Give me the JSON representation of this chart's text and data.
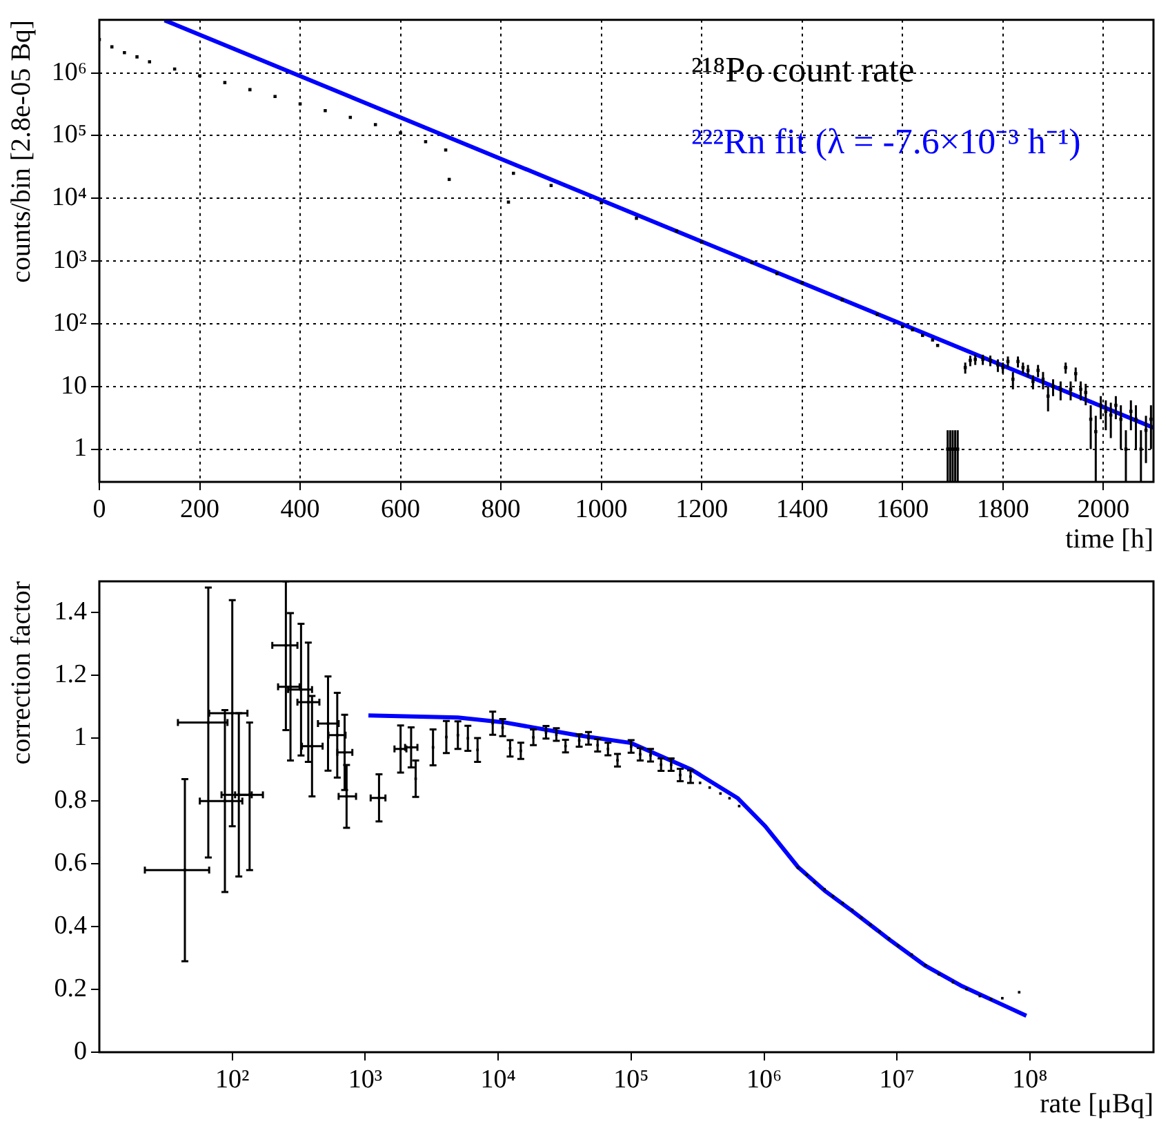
{
  "chart_data": [
    {
      "type": "scatter",
      "xlabel": "time [h]",
      "ylabel": "counts/bin [2.8e-05 Bq]",
      "log": "y",
      "grid": true,
      "legend": "top right",
      "xlim": [
        0,
        2100
      ],
      "xticks": [
        0,
        200,
        400,
        600,
        800,
        1000,
        1200,
        1400,
        1600,
        1800,
        2000
      ],
      "ylim": [
        0.3,
        7000000
      ],
      "yticks": [
        1,
        10,
        {
          "value": 100,
          "label": "10²"
        },
        {
          "value": 1000,
          "label": "10³"
        },
        {
          "value": 10000,
          "label": "10⁴"
        },
        {
          "value": 100000,
          "label": "10⁵"
        },
        {
          "value": 1000000,
          "label": "10⁶"
        }
      ],
      "series": [
        {
          "name": "²¹⁸Po count rate",
          "color": "#000000",
          "marker": "square",
          "x": [
            0,
            25,
            50,
            75,
            100,
            150,
            200,
            250,
            300,
            350,
            400,
            450,
            500,
            550,
            600,
            650,
            690,
            697,
            815,
            825,
            900,
            1000,
            1070,
            1150,
            1200,
            1300,
            1350,
            1400,
            1480,
            1550,
            1600,
            1620,
            1640,
            1660,
            1670,
            1690,
            1695,
            1700,
            1705,
            1710,
            1725,
            1735,
            1745,
            1760,
            1775,
            1790,
            1800,
            1810,
            1820,
            1830,
            1840,
            1850,
            1860,
            1870,
            1880,
            1890,
            1900,
            1915,
            1925,
            1935,
            1945,
            1955,
            1965,
            1975,
            1985,
            1995,
            2005,
            2015,
            2025,
            2035,
            2045,
            2055,
            2065,
            2075,
            2085,
            2095
          ],
          "values": [
            3400000,
            2600000,
            2100000,
            1800000,
            1500000,
            1150000,
            900000,
            700000,
            540000,
            420000,
            320000,
            250000,
            195000,
            150000,
            110000,
            80000,
            59000,
            20000,
            8700,
            25000,
            16000,
            8500,
            4800,
            3000,
            2000,
            950,
            630,
            450,
            240,
            140,
            90,
            80,
            65,
            55,
            45,
            1,
            1,
            1,
            1,
            1,
            20,
            26,
            27,
            27,
            26,
            22,
            20,
            25,
            13,
            25,
            20,
            18,
            12,
            18,
            13,
            7,
            10,
            9,
            20,
            9,
            16,
            9,
            8,
            3,
            1.9,
            5,
            4,
            3.5,
            5,
            3,
            1,
            4,
            3,
            1,
            2,
            3
          ],
          "errors": [
            null,
            null,
            null,
            null,
            null,
            null,
            null,
            null,
            null,
            null,
            null,
            null,
            null,
            null,
            null,
            null,
            null,
            null,
            null,
            null,
            null,
            null,
            null,
            null,
            null,
            null,
            null,
            null,
            null,
            null,
            null,
            null,
            null,
            null,
            null,
            [
              0.3,
              2
            ],
            [
              0.3,
              2
            ],
            [
              0.3,
              2
            ],
            [
              0.3,
              2
            ],
            [
              0.3,
              2
            ],
            4,
            5,
            5,
            5,
            5,
            5,
            4,
            5,
            4,
            5,
            4,
            4,
            3,
            4,
            4,
            3,
            3,
            3,
            4,
            3,
            4,
            3,
            3,
            2,
            [
              0.3,
              3.4
            ],
            2,
            2,
            2,
            2,
            2,
            [
              0.3,
              2
            ],
            2,
            2,
            [
              0.3,
              2
            ],
            [
              0.6,
              3.4
            ],
            2
          ]
        },
        {
          "name": "²²²Rn fit (λ = -7.6×10⁻³ h⁻¹)",
          "type": "line",
          "color": "#0000ff",
          "marker": "none",
          "x": [
            130,
            2100
          ],
          "values": [
            6900000,
            2.2
          ]
        }
      ]
    },
    {
      "type": "scatter",
      "xlabel": "rate [μBq]",
      "ylabel": "correction factor",
      "log": "x",
      "grid": false,
      "legend": false,
      "xlim": [
        10,
        850000000
      ],
      "xticks": [
        {
          "value": 100,
          "label": "10²"
        },
        {
          "value": 1000,
          "label": "10³"
        },
        {
          "value": 10000,
          "label": "10⁴"
        },
        {
          "value": 100000,
          "label": "10⁵"
        },
        {
          "value": 1000000,
          "label": "10⁶"
        },
        {
          "value": 10000000,
          "label": "10⁷"
        },
        {
          "value": 100000000,
          "label": "10⁸"
        }
      ],
      "ylim": [
        0,
        1.5
      ],
      "yticks": [
        0,
        0.2,
        0.4,
        0.6,
        0.8,
        1,
        1.2,
        1.4
      ],
      "series": [
        {
          "color": "#000000",
          "marker": "square",
          "x": [
            44,
            66,
            88,
            100,
            112,
            135,
            253,
            274,
            329,
            373,
            398,
            525,
            616,
            700,
            724,
            1270,
            1845,
            2214,
            2396,
            3236,
            4074,
            4977,
            5920,
            6998,
            9100,
            10800,
            12300,
            14800,
            18400,
            22900,
            27400,
            32100,
            40700,
            47800,
            56000,
            67000,
            79000,
            100000,
            117000,
            140000,
            168000,
            200000,
            234000,
            280000,
            330000,
            390000,
            470000,
            550000,
            650000,
            1800000,
            2100000,
            2400000,
            2850000,
            3300000,
            3900000,
            4600000,
            5400000,
            6300000,
            7400000,
            8700000,
            10200000,
            12900000,
            16400000,
            20700000,
            26400000,
            33400000,
            42000000,
            51000000,
            62000000,
            83000000
          ],
          "values": [
            0.58,
            1.05,
            0.8,
            1.08,
            0.82,
            0.82,
            1.296,
            1.164,
            1.155,
            1.115,
            0.975,
            1.047,
            1.01,
            0.955,
            0.815,
            0.81,
            0.966,
            0.971,
            0.871,
            0.971,
            1.004,
            1.01,
            1.0,
            0.963,
            1.048,
            1.034,
            0.968,
            0.96,
            1.003,
            1.019,
            1.012,
            0.975,
            0.993,
            1.0,
            0.978,
            0.966,
            0.93,
            0.974,
            0.949,
            0.946,
            0.916,
            0.916,
            0.883,
            0.878,
            0.858,
            0.843,
            0.824,
            0.809,
            0.784,
            0.587,
            0.565,
            0.541,
            0.519,
            0.497,
            0.475,
            0.453,
            0.428,
            0.406,
            0.384,
            0.362,
            0.339,
            0.311,
            0.277,
            0.248,
            0.223,
            0.201,
            0.179,
            0.169,
            0.172,
            0.191
          ],
          "errors": [
            0.29,
            0.43,
            0.29,
            0.36,
            0.26,
            [
              0.58,
              1.05
            ],
            [
              1.026,
              1.5
            ],
            0.235,
            0.21,
            0.19,
            0.16,
            0.15,
            0.135,
            0.12,
            0.1,
            0.075,
            0.075,
            0.064,
            0.058,
            0.057,
            0.051,
            0.044,
            0.04,
            0.038,
            0.037,
            0.027,
            0.026,
            0.026,
            0.025,
            0.02,
            0.02,
            0.02,
            0.02,
            0.02,
            0.02,
            0.02,
            0.02,
            0.02,
            0.02,
            0.02,
            0.02,
            0.02,
            0.02,
            0.02,
            null,
            null,
            null,
            null,
            null,
            null,
            null,
            null,
            null,
            null,
            null,
            null,
            null,
            null,
            null,
            null,
            null,
            null,
            null,
            null,
            null,
            null,
            null,
            null,
            null,
            null
          ],
          "xerrors": [
            [
              22,
              67
            ],
            [
              39,
              92
            ],
            [
              57,
              119
            ],
            [
              67,
              130
            ],
            [
              83,
              140
            ],
            [
              105,
              170
            ],
            [
              200,
              309
            ],
            [
              221,
              321
            ],
            [
              263,
              398
            ],
            [
              309,
              452
            ],
            [
              334,
              478
            ],
            [
              441,
              631
            ],
            [
              529,
              711
            ],
            [
              617,
              800
            ],
            [
              631,
              853
            ],
            [
              1099,
              1419
            ],
            [
              1660,
              2040
            ],
            [
              1995,
              2470
            ],
            null,
            null,
            null,
            null,
            null,
            null,
            null,
            null,
            null,
            null,
            null,
            null,
            null,
            null,
            null,
            null,
            null,
            null,
            null,
            null,
            null,
            null,
            null,
            null,
            null,
            null,
            null,
            null,
            null,
            null,
            null,
            null,
            null,
            null,
            null,
            null,
            null,
            null,
            null,
            null,
            null,
            null,
            null,
            null,
            null,
            null,
            null,
            null,
            null,
            null,
            null,
            null
          ]
        },
        {
          "type": "line",
          "color": "#0000ff",
          "marker": "none",
          "x": [
            1057,
            4977,
            11000,
            39000,
            100000,
            285000,
            630000,
            1020000,
            1800000,
            2850000,
            4600000,
            8700000,
            16400000,
            31000000,
            58000000,
            94000000
          ],
          "values": [
            1.073,
            1.066,
            1.051,
            1.01,
            0.985,
            0.9,
            0.81,
            0.72,
            0.59,
            0.515,
            0.45,
            0.36,
            0.275,
            0.21,
            0.157,
            0.116
          ]
        }
      ]
    }
  ]
}
